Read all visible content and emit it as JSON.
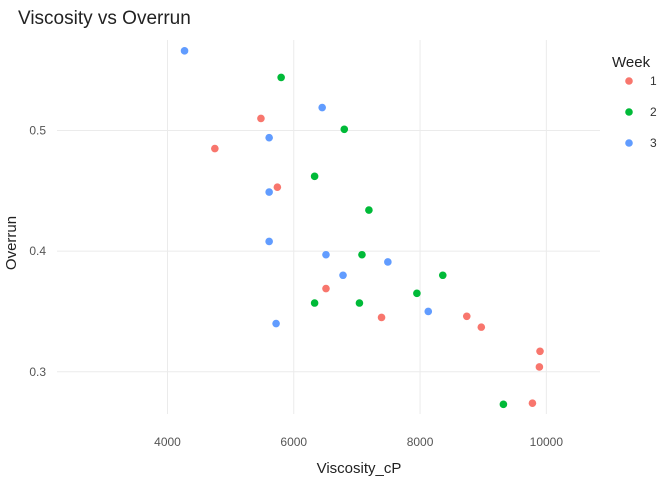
{
  "chart_data": {
    "type": "scatter",
    "title": "Viscosity vs Overrun",
    "xlabel": "Viscosity_cP",
    "ylabel": "Overrun",
    "xlim": [
      2250,
      10850
    ],
    "ylim": [
      0.265,
      0.575
    ],
    "xticks": [
      4000,
      6000,
      8000,
      10000
    ],
    "yticks": [
      0.3,
      0.4,
      0.5
    ],
    "ytick_labels": [
      "0.3",
      "0.4",
      "0.5"
    ],
    "grid": true,
    "legend_title": "Week",
    "legend_position": "right",
    "series": [
      {
        "name": "1",
        "color": "#F8766D",
        "points": [
          [
            4750,
            0.485
          ],
          [
            5480,
            0.51
          ],
          [
            5740,
            0.453
          ],
          [
            6510,
            0.369
          ],
          [
            7390,
            0.345
          ],
          [
            8740,
            0.346
          ],
          [
            8970,
            0.337
          ],
          [
            9900,
            0.317
          ],
          [
            9890,
            0.304
          ],
          [
            9780,
            0.274
          ]
        ]
      },
      {
        "name": "2",
        "color": "#00BA38",
        "points": [
          [
            5800,
            0.544
          ],
          [
            6800,
            0.501
          ],
          [
            6330,
            0.462
          ],
          [
            7190,
            0.434
          ],
          [
            7080,
            0.397
          ],
          [
            8360,
            0.38
          ],
          [
            7950,
            0.365
          ],
          [
            6330,
            0.357
          ],
          [
            7040,
            0.357
          ],
          [
            9320,
            0.273
          ]
        ]
      },
      {
        "name": "3",
        "color": "#619CFF",
        "points": [
          [
            4270,
            0.566
          ],
          [
            6450,
            0.519
          ],
          [
            5610,
            0.494
          ],
          [
            5610,
            0.449
          ],
          [
            5610,
            0.408
          ],
          [
            6510,
            0.397
          ],
          [
            7490,
            0.391
          ],
          [
            6780,
            0.38
          ],
          [
            8130,
            0.35
          ],
          [
            5720,
            0.34
          ]
        ]
      }
    ]
  }
}
